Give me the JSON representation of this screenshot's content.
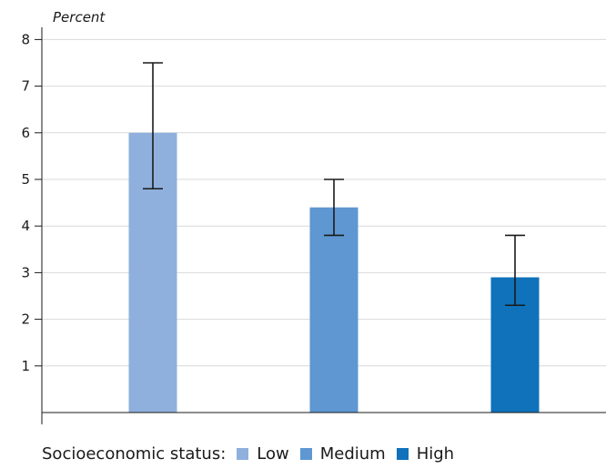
{
  "chart_data": {
    "type": "bar",
    "ylabel": "Percent",
    "xlabel": "",
    "title": "",
    "ylim": [
      0,
      8
    ],
    "yticks": [
      1,
      2,
      3,
      4,
      5,
      6,
      7,
      8
    ],
    "grid": true,
    "legend_placement": "bottom-left",
    "series": [
      {
        "name": "Low",
        "value": 6.0,
        "error_low": 4.8,
        "error_high": 7.5,
        "color": "#8fb0dc"
      },
      {
        "name": "Medium",
        "value": 4.4,
        "error_low": 3.8,
        "error_high": 5.0,
        "color": "#5e97d2"
      },
      {
        "name": "High",
        "value": 2.9,
        "error_low": 2.3,
        "error_high": 3.8,
        "color": "#0f72ba"
      }
    ]
  },
  "legend": {
    "title": "Socioeconomic status:",
    "items": [
      {
        "label": "Low",
        "color": "#8fb0dc"
      },
      {
        "label": "Medium",
        "color": "#5e97d2"
      },
      {
        "label": "High",
        "color": "#0f72ba"
      }
    ]
  }
}
